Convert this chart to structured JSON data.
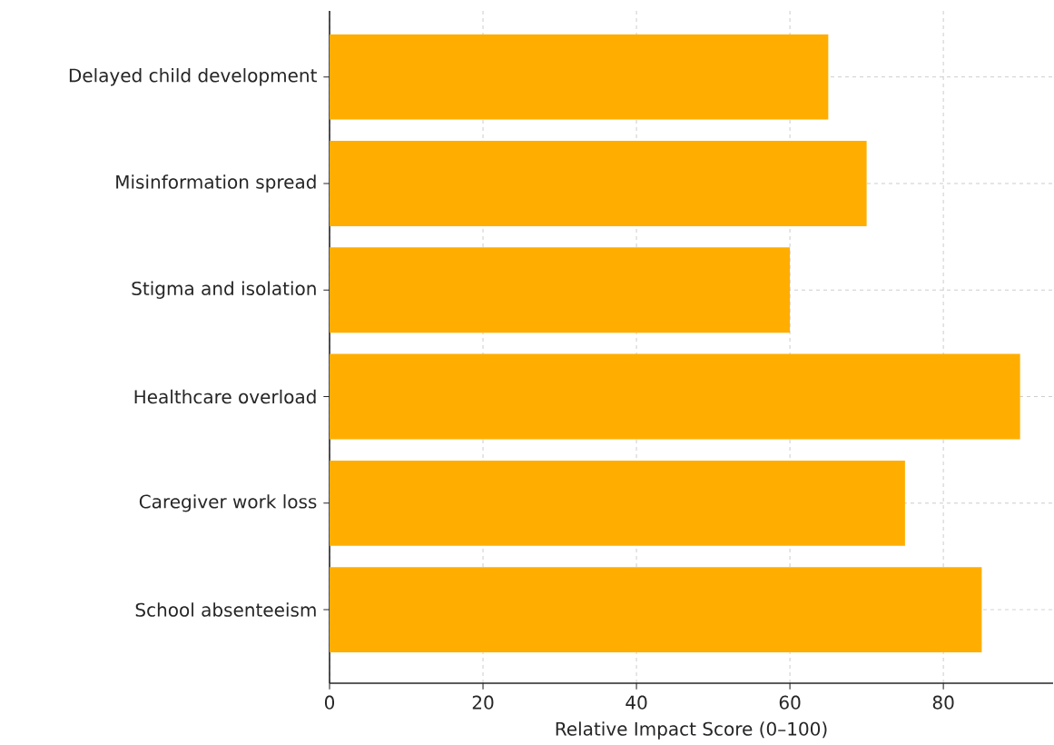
{
  "chart_data": {
    "type": "bar",
    "orientation": "horizontal",
    "xlabel": "Relative Impact Score (0–100)",
    "categories": [
      "Delayed child development",
      "Misinformation spread",
      "Stigma and isolation",
      "Healthcare overload",
      "Caregiver work loss",
      "School absenteeism"
    ],
    "values": [
      65,
      70,
      60,
      90,
      75,
      85
    ],
    "color": "#ffae00",
    "xlim": [
      0,
      94.3
    ],
    "xticks": [
      0,
      20,
      40,
      60,
      80
    ],
    "grid": true
  }
}
